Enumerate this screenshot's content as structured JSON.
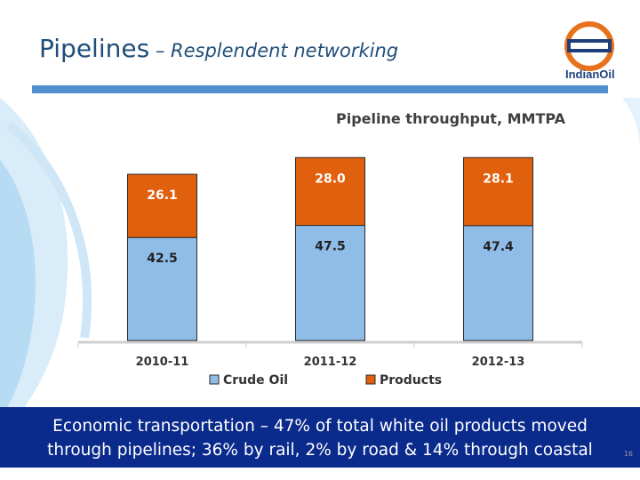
{
  "slide": {
    "title_main": "Pipelines",
    "title_sub": " – Resplendent networking",
    "logo_text": "IndianOil",
    "footer_line1": "Economic transportation – 47% of total white oil products moved",
    "footer_line2": "through pipelines; 36% by rail, 2% by road & 14% through coastal",
    "page_number": "16"
  },
  "colors": {
    "crude": "#8fbde8",
    "products": "#e0600e",
    "title": "#1f4e79",
    "footer_bg": "#0a2a8c"
  },
  "chart_data": {
    "type": "bar",
    "stacked": true,
    "title": "Pipeline throughput, MMTPA",
    "categories": [
      "2010-11",
      "2011-12",
      "2012-13"
    ],
    "series": [
      {
        "name": "Crude Oil",
        "values": [
          42.5,
          47.5,
          47.4
        ]
      },
      {
        "name": "Products",
        "values": [
          26.1,
          28.0,
          28.1
        ]
      }
    ],
    "ylim": [
      0,
      80
    ],
    "grid": false,
    "legend": "bottom"
  }
}
